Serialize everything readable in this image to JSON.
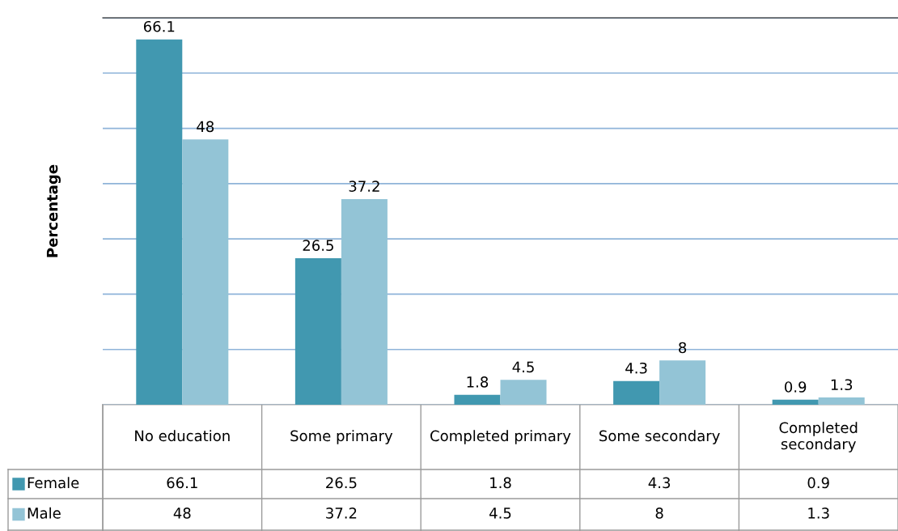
{
  "chart_data": {
    "type": "bar",
    "ylabel": "Percentage",
    "categories": [
      "No education",
      "Some primary",
      "Completed primary",
      "Some secondary",
      "Completed secondary"
    ],
    "series": [
      {
        "name": "Female",
        "color": "#4198b0",
        "values": [
          66.1,
          26.5,
          1.8,
          4.3,
          0.9
        ]
      },
      {
        "name": "Male",
        "color": "#93c4d6",
        "values": [
          48,
          37.2,
          4.5,
          8,
          1.3
        ]
      }
    ],
    "ylim": [
      0,
      70
    ],
    "yticks": [
      {
        "value": 0,
        "label": null
      },
      {
        "value": 10,
        "label": null
      },
      {
        "value": 20,
        "label": null
      },
      {
        "value": 30,
        "label": null
      },
      {
        "value": 40,
        "label": null
      },
      {
        "value": 50,
        "label": null
      },
      {
        "value": 60,
        "label": null
      },
      {
        "value": 70,
        "label": null
      }
    ],
    "grid": "y",
    "legend": "bottom",
    "data_labels": true,
    "annotations": [
      "66.1",
      "26.5",
      "1.8",
      "4.3",
      "0.9",
      "48",
      "37.2",
      "4.5",
      "8",
      "1.3"
    ]
  }
}
